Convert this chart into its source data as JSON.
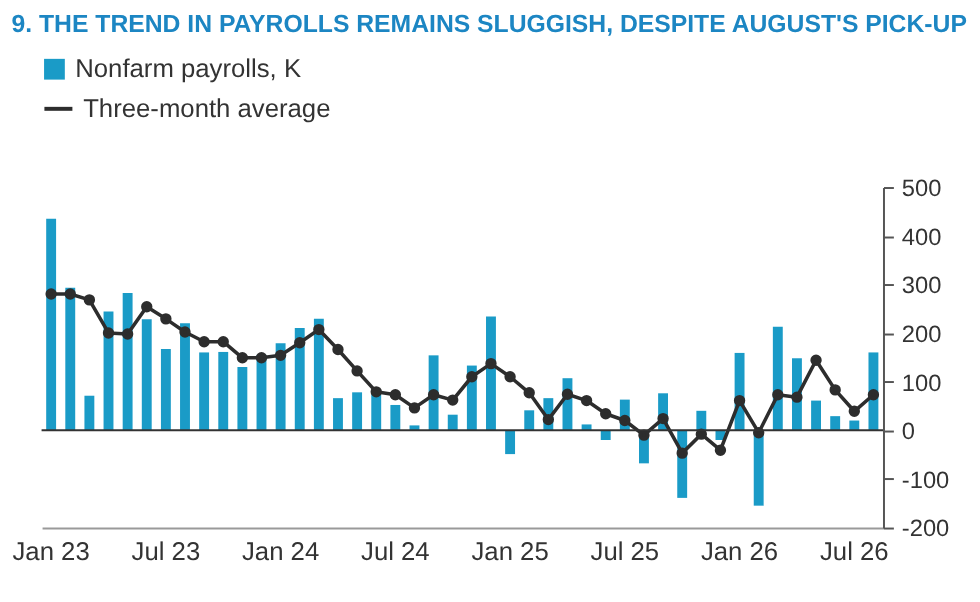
{
  "chart_data": {
    "type": "bar",
    "title": "9. THE TREND IN PAYROLLS REMAINS SLUGGISH, DESPITE AUGUST'S PICK-UP",
    "categories": [
      "Jan 23",
      null,
      null,
      null,
      null,
      null,
      "Jul 23",
      null,
      null,
      null,
      null,
      null,
      "Jan 24",
      null,
      null,
      null,
      null,
      null,
      "Jul 24",
      null,
      null,
      null,
      null,
      null,
      "Jan 25",
      null,
      null,
      null,
      null,
      null,
      "Jul 25",
      null,
      null,
      null,
      null,
      null,
      "Jan 26",
      null,
      null,
      null,
      null,
      null,
      "Jul 26",
      null
    ],
    "series": [
      {
        "name": "Nonfarm payrolls, K",
        "color": "#1a9bc7",
        "values": [
          435,
          293,
          71,
          244,
          282,
          228,
          167,
          220,
          160,
          161,
          130,
          155,
          179,
          210,
          229,
          66,
          78,
          83,
          52,
          10,
          154,
          32,
          133,
          234,
          -49,
          41,
          66,
          107,
          12,
          -20,
          63,
          -68,
          76,
          -139,
          40,
          -20,
          159,
          -155,
          213,
          148,
          61,
          29,
          20,
          160
        ]
      },
      {
        "name": "Three-month average",
        "type": "line",
        "color": "#2d2d2d",
        "marker": "circle",
        "values": [
          280,
          280,
          268,
          200,
          198,
          254,
          229,
          202,
          182,
          182,
          149,
          149,
          154,
          180,
          207,
          166,
          122,
          79,
          73,
          46,
          73,
          62,
          110,
          137,
          110,
          77,
          22,
          74,
          61,
          34,
          20,
          -10,
          24,
          -47,
          -8,
          -41,
          61,
          -5,
          73,
          68,
          144,
          83,
          39,
          73
        ]
      }
    ],
    "ylim": [
      -200,
      500
    ],
    "yticks": [
      -200,
      -100,
      0,
      100,
      200,
      300,
      400,
      500
    ],
    "ref_lines": [
      {
        "axis": "y",
        "value": 0
      }
    ],
    "grid": false,
    "legend": "top left"
  }
}
